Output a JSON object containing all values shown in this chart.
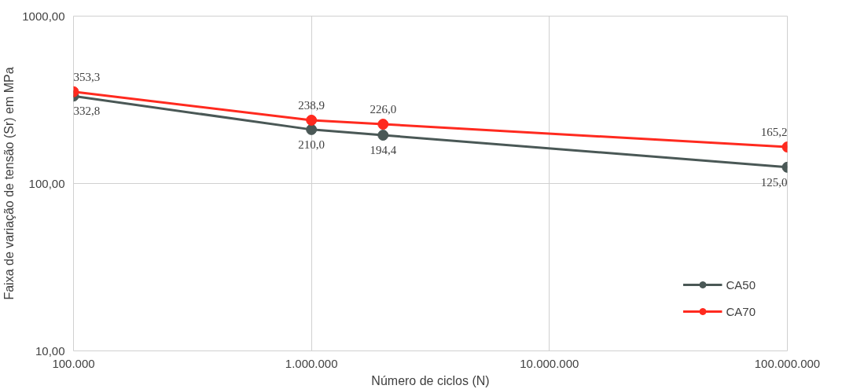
{
  "chart_data": {
    "type": "line",
    "xlabel": "Número de ciclos (N)",
    "ylabel": "Faixa de variação de tensão (Sr) em MPa",
    "x": [
      100000,
      1000000,
      2000000,
      100000000
    ],
    "series": [
      {
        "name": "CA50",
        "color": "#4a5856",
        "values": [
          332.8,
          210.0,
          194.4,
          125.0
        ],
        "value_labels": [
          "332,8",
          "210,0",
          "194,4",
          "125,0"
        ]
      },
      {
        "name": "CA70",
        "color": "#ff2a1f",
        "values": [
          353.3,
          238.9,
          226.0,
          165.2
        ],
        "value_labels": [
          "353,3",
          "238,9",
          "226,0",
          "165,2"
        ]
      }
    ],
    "log": "xy",
    "xlim": [
      100000,
      100000000
    ],
    "ylim": [
      10,
      1000
    ],
    "xticks": [
      {
        "value": 100000,
        "label": "100.000"
      },
      {
        "value": 1000000,
        "label": "1.000.000"
      },
      {
        "value": 10000000,
        "label": "10.000.000"
      },
      {
        "value": 100000000,
        "label": "100.000.000"
      }
    ],
    "yticks": [
      {
        "value": 10,
        "label": "10,00"
      },
      {
        "value": 100,
        "label": "100,00"
      },
      {
        "value": 1000,
        "label": "1000,00"
      }
    ],
    "grid": true,
    "legend": "bottom right",
    "marker": "circle",
    "line_style": "solid"
  }
}
